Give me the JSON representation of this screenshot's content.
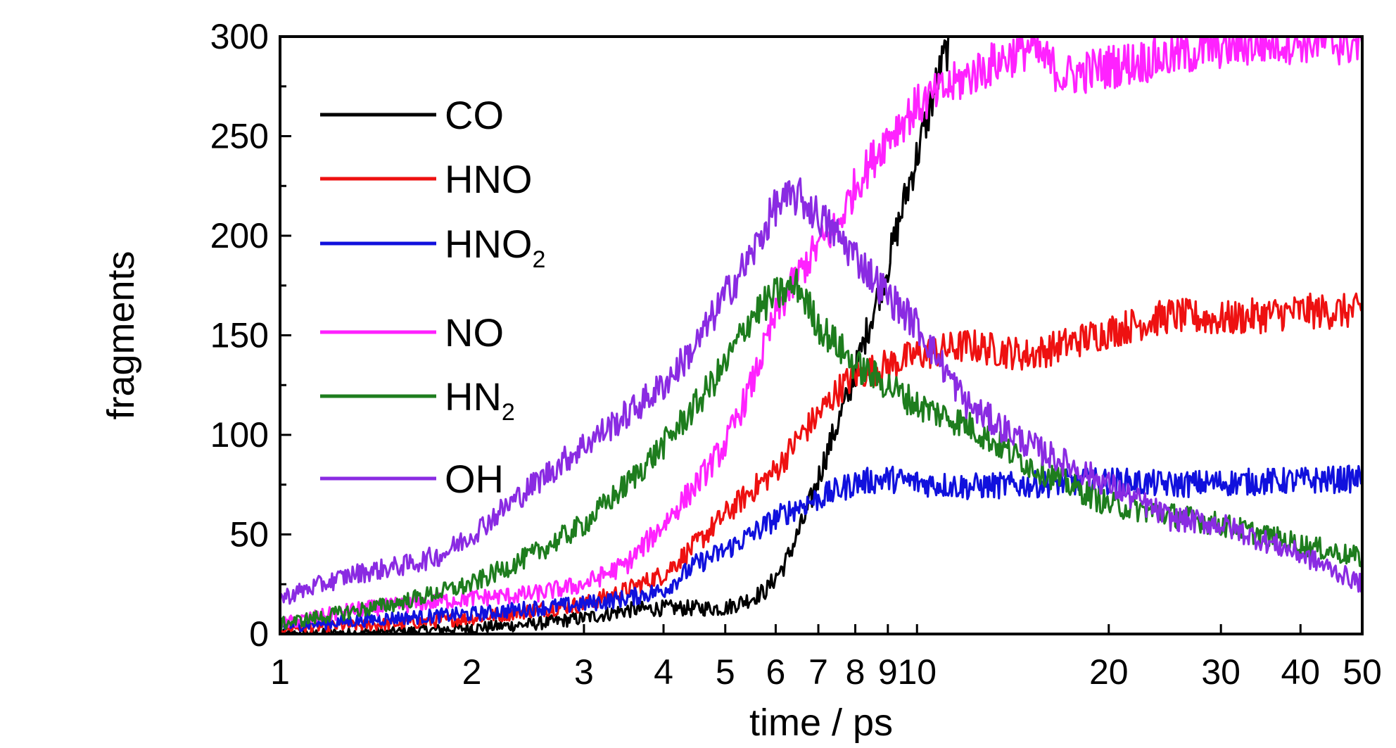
{
  "chart_data": {
    "type": "line",
    "title": "",
    "xlabel": "time / ps",
    "ylabel": "fragments",
    "x_scale": "log",
    "xlim": [
      1,
      50
    ],
    "ylim": [
      0,
      300
    ],
    "x_ticks": [
      1,
      2,
      3,
      4,
      5,
      6,
      7,
      8,
      9,
      10,
      20,
      30,
      40,
      50
    ],
    "x_tick_labels": [
      "1",
      "2",
      "3",
      "4",
      "5",
      "6",
      "7",
      "8",
      "9",
      "10",
      "20",
      "30",
      "40",
      "50"
    ],
    "y_ticks": [
      0,
      50,
      100,
      150,
      200,
      250,
      300
    ],
    "y_tick_labels": [
      "0",
      "50",
      "100",
      "150",
      "200",
      "250",
      "300"
    ],
    "grid": false,
    "legend_position": "top-left",
    "series": [
      {
        "name": "CO",
        "label_main": "CO",
        "label_sub": "",
        "color": "#000000",
        "x": [
          1,
          1.5,
          2,
          2.5,
          3,
          3.5,
          4,
          4.5,
          5,
          5.5,
          5.8,
          6.2,
          6.7,
          7.2,
          7.8,
          8.4,
          9,
          9.6,
          10.2,
          10.8,
          11.3
        ],
        "y": [
          0,
          1,
          3,
          5,
          8,
          12,
          13,
          13,
          13,
          18,
          22,
          35,
          60,
          90,
          120,
          155,
          185,
          220,
          250,
          280,
          300
        ]
      },
      {
        "name": "HNO",
        "label_main": "HNO",
        "label_sub": "",
        "color": "#ee1111",
        "x": [
          1,
          1.5,
          2,
          2.5,
          3,
          3.5,
          4,
          4.5,
          5,
          5.5,
          6,
          6.5,
          7,
          7.5,
          8,
          9,
          10,
          12,
          15,
          20,
          25,
          30,
          40,
          50
        ],
        "y": [
          3,
          5,
          8,
          12,
          15,
          22,
          30,
          45,
          60,
          72,
          82,
          98,
          110,
          122,
          130,
          135,
          140,
          145,
          140,
          152,
          160,
          158,
          162,
          162
        ]
      },
      {
        "name": "HNO2",
        "label_main": "HNO",
        "label_sub": "2",
        "color": "#1111dd",
        "x": [
          1,
          1.5,
          2,
          2.5,
          3,
          3.5,
          4,
          4.5,
          5,
          5.5,
          6,
          6.5,
          7,
          7.5,
          8,
          9,
          10,
          12,
          15,
          20,
          25,
          30,
          40,
          50
        ],
        "y": [
          4,
          8,
          10,
          13,
          15,
          18,
          22,
          35,
          42,
          50,
          58,
          64,
          68,
          72,
          76,
          78,
          76,
          74,
          75,
          77,
          75,
          76,
          77,
          78
        ]
      },
      {
        "name": "NO",
        "label_main": "NO",
        "label_sub": "",
        "color": "#ff22ff",
        "x": [
          1,
          1.3,
          1.6,
          2,
          2.5,
          3,
          3.5,
          4,
          4.5,
          5,
          5.5,
          6,
          6.5,
          7,
          7.5,
          8,
          9,
          10,
          12,
          15,
          17,
          20,
          25,
          30,
          40,
          50
        ],
        "y": [
          5,
          12,
          15,
          18,
          20,
          25,
          35,
          55,
          75,
          95,
          125,
          160,
          180,
          195,
          205,
          225,
          250,
          265,
          280,
          295,
          280,
          285,
          290,
          295,
          298,
          296
        ]
      },
      {
        "name": "HN2",
        "label_main": "HN",
        "label_sub": "2",
        "color": "#1e7d1e",
        "x": [
          1,
          1.5,
          2,
          2.5,
          3,
          3.5,
          4,
          4.5,
          5,
          5.5,
          6,
          6.5,
          7,
          7.5,
          8,
          9,
          10,
          12,
          15,
          20,
          25,
          30,
          40,
          50
        ],
        "y": [
          5,
          15,
          25,
          40,
          55,
          75,
          95,
          115,
          135,
          160,
          170,
          175,
          155,
          145,
          135,
          125,
          115,
          105,
          85,
          65,
          60,
          55,
          45,
          38
        ]
      },
      {
        "name": "OH",
        "label_main": "OH",
        "label_sub": "",
        "color": "#8a2be2",
        "x": [
          1,
          1.3,
          1.6,
          1.8,
          2,
          2.5,
          3,
          3.5,
          4,
          4.5,
          5,
          5.5,
          6,
          6.5,
          7,
          7.5,
          8,
          9,
          10,
          12,
          15,
          20,
          25,
          30,
          40,
          50
        ],
        "y": [
          18,
          30,
          35,
          40,
          50,
          75,
          95,
          110,
          125,
          145,
          170,
          190,
          215,
          220,
          210,
          200,
          190,
          170,
          155,
          115,
          95,
          75,
          58,
          55,
          40,
          25
        ]
      }
    ]
  }
}
